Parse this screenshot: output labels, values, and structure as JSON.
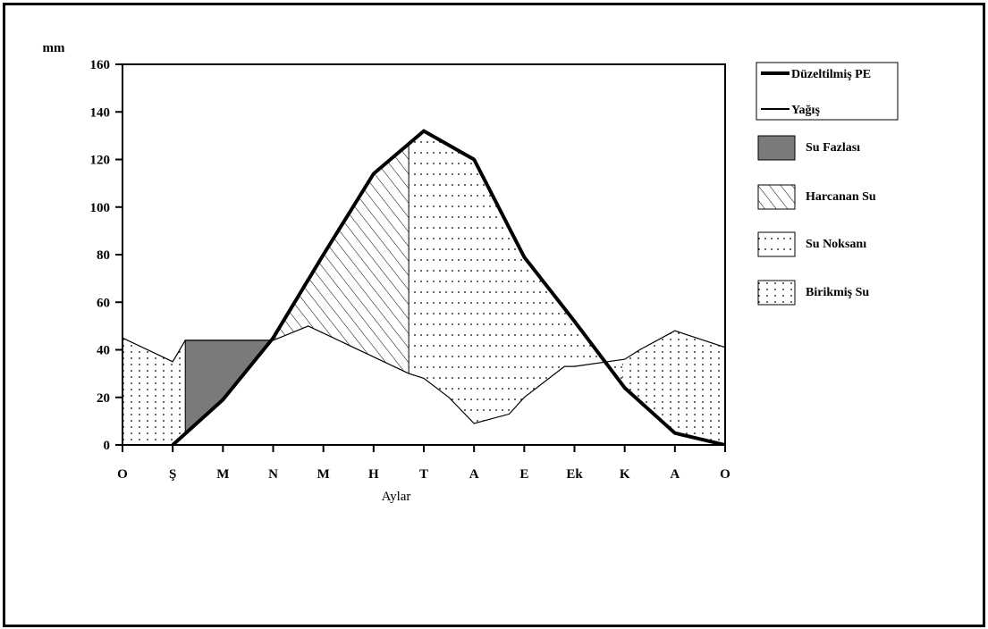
{
  "chart_data": {
    "type": "area",
    "title": "",
    "xlabel": "Aylar",
    "ylabel": "mm",
    "ylim": [
      0,
      160
    ],
    "yticks": [
      0,
      20,
      40,
      60,
      80,
      100,
      120,
      140,
      160
    ],
    "categories": [
      "O",
      "Ş",
      "M",
      "N",
      "M",
      "H",
      "T",
      "A",
      "E",
      "Ek",
      "K",
      "A",
      "O"
    ],
    "series": [
      {
        "name": "Düzeltilmiş PE",
        "x": [
          1,
          2,
          3,
          4,
          5,
          6,
          7,
          8,
          9,
          10,
          11,
          12
        ],
        "values": [
          0,
          19,
          45,
          80,
          114,
          132,
          120,
          79,
          52,
          24,
          5,
          0
        ]
      },
      {
        "name": "Yağış",
        "x": [
          0,
          1,
          1.25,
          3,
          3.7,
          5.7,
          6,
          6.5,
          7,
          7.7,
          8,
          8.8,
          9,
          10,
          10.3,
          11,
          12
        ],
        "values": [
          45,
          35,
          44,
          44,
          50,
          30,
          28,
          20,
          9,
          13,
          20,
          33,
          33,
          36,
          40,
          48,
          41
        ]
      }
    ],
    "legend": [
      {
        "label": "Düzeltilmiş PE",
        "style": "thick-line"
      },
      {
        "label": "Yağış",
        "style": "thin-line"
      },
      {
        "label": "Su Fazlası",
        "style": "gray-fill"
      },
      {
        "label": "Harcanan Su",
        "style": "diagonal-hatch"
      },
      {
        "label": "Su Noksanı",
        "style": "dotted-horizontal"
      },
      {
        "label": "Birikmiş Su",
        "style": "dotted-vertical"
      }
    ],
    "legend_position": "right",
    "grid": false,
    "colors": {
      "line": "#000000",
      "surplus": "#7a7a7a",
      "background": "#ffffff"
    }
  }
}
